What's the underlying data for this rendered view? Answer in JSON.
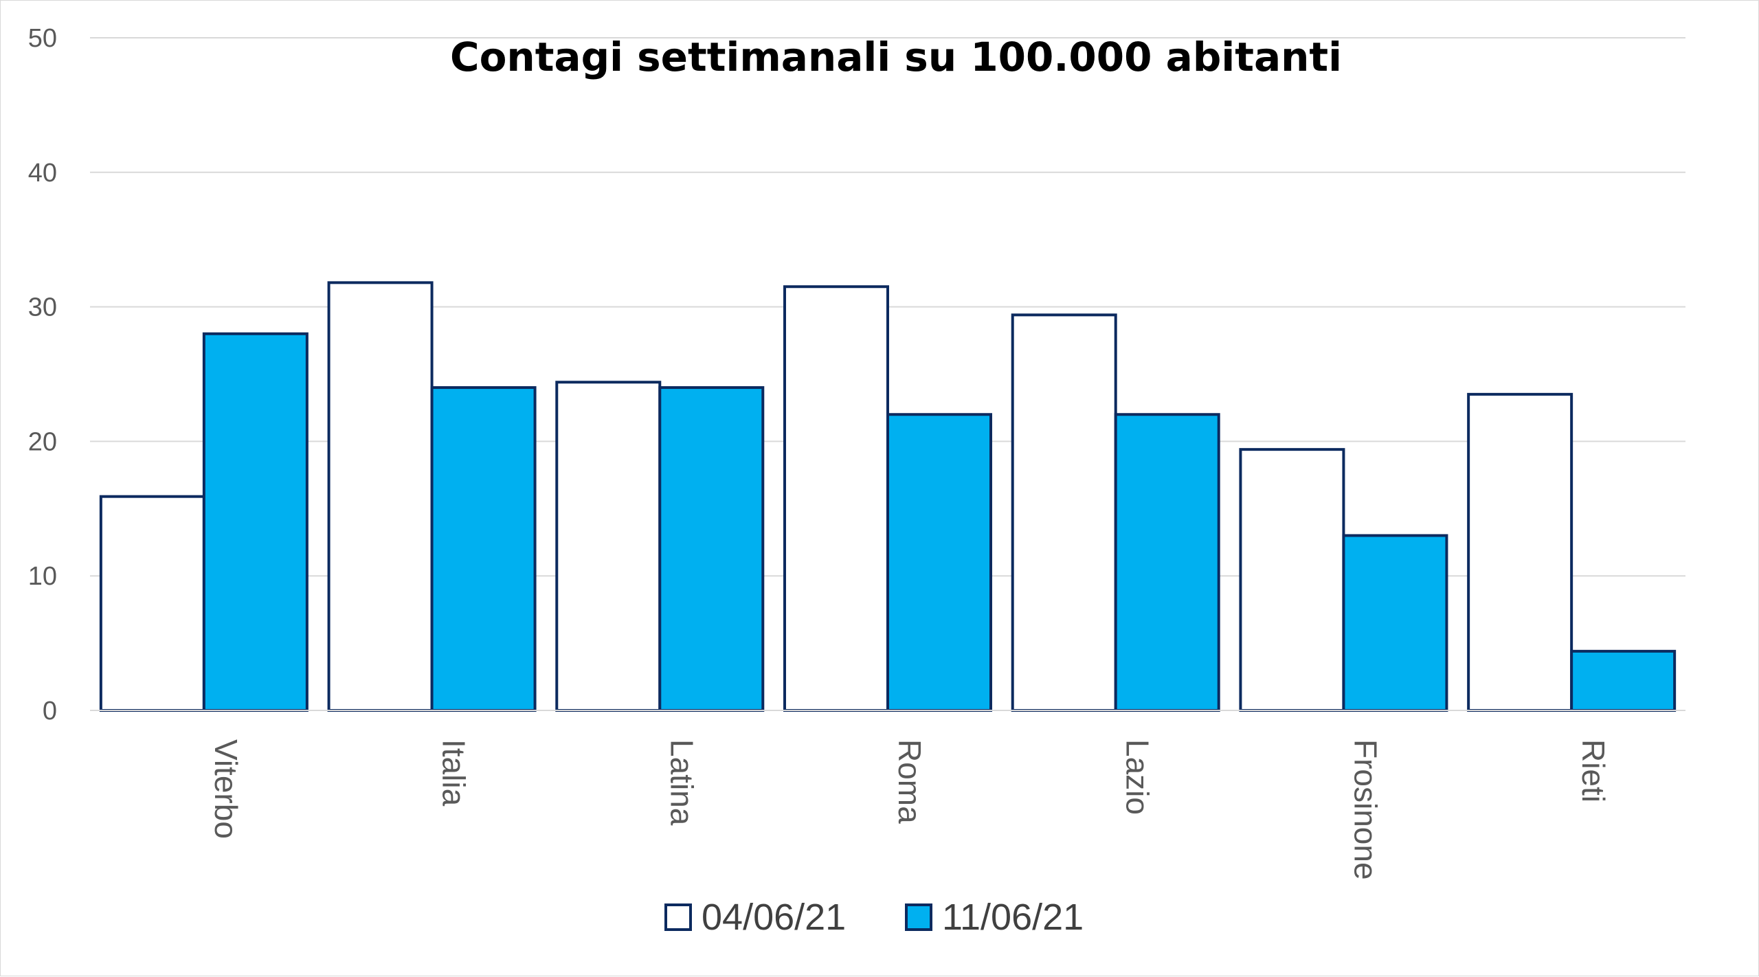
{
  "chart_data": {
    "type": "bar",
    "title": "Contagi settimanali su 100.000 abitanti",
    "xlabel": "",
    "ylabel": "",
    "ylim": [
      0,
      50
    ],
    "yticks": [
      0,
      10,
      20,
      30,
      40,
      50
    ],
    "grid": true,
    "legend_position": "bottom",
    "categories": [
      "Viterbo",
      "Italia",
      "Latina",
      "Roma",
      "Lazio",
      "Frosinone",
      "Rieti"
    ],
    "series": [
      {
        "name": "04/06/21",
        "values": [
          15.9,
          31.8,
          24.4,
          31.5,
          29.4,
          19.4,
          23.5
        ],
        "fill": "#ffffff",
        "stroke": "#0c2a5f"
      },
      {
        "name": "11/06/21",
        "values": [
          28.0,
          24.0,
          24.0,
          22.0,
          22.0,
          13.0,
          4.4
        ],
        "fill": "#00b0f0",
        "stroke": "#0c2a5f"
      }
    ]
  }
}
